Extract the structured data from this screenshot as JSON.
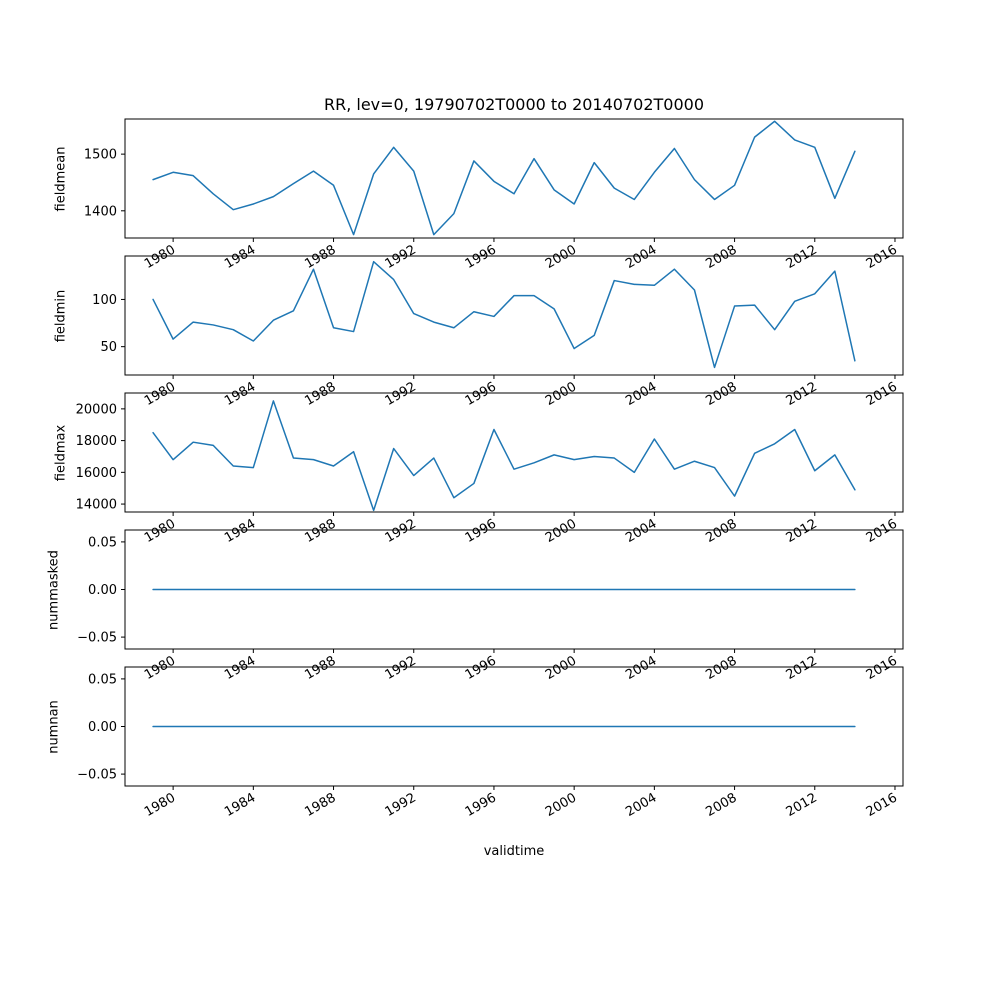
{
  "title": "RR, lev=0, 19790702T0000 to 20140702T0000",
  "xlabel": "validtime",
  "style": {
    "line_color": "#1f77b4",
    "axis_color": "#000000",
    "background": "#ffffff"
  },
  "axes": {
    "xlim": [
      1977.6,
      2016.4
    ],
    "xticks": [
      {
        "value": 1980,
        "label": "1980"
      },
      {
        "value": 1984,
        "label": "1984"
      },
      {
        "value": 1988,
        "label": "1988"
      },
      {
        "value": 1992,
        "label": "1992"
      },
      {
        "value": 1996,
        "label": "1996"
      },
      {
        "value": 2000,
        "label": "2000"
      },
      {
        "value": 2004,
        "label": "2004"
      },
      {
        "value": 2008,
        "label": "2008"
      },
      {
        "value": 2012,
        "label": "2012"
      },
      {
        "value": 2016,
        "label": "2016"
      }
    ],
    "xtick_rotation_deg": 30
  },
  "chart_data": [
    {
      "type": "line",
      "name": "fieldmean",
      "ylabel": "fieldmean",
      "ylim": [
        1352,
        1562
      ],
      "yticks": [
        {
          "value": 1400,
          "label": "1400"
        },
        {
          "value": 1500,
          "label": "1500"
        }
      ],
      "x": [
        1979,
        1980,
        1981,
        1982,
        1983,
        1984,
        1985,
        1986,
        1987,
        1988,
        1989,
        1990,
        1991,
        1992,
        1993,
        1994,
        1995,
        1996,
        1997,
        1998,
        1999,
        2000,
        2001,
        2002,
        2003,
        2004,
        2005,
        2006,
        2007,
        2008,
        2009,
        2010,
        2011,
        2012,
        2013,
        2014
      ],
      "values": [
        1455,
        1468,
        1462,
        1430,
        1402,
        1412,
        1425,
        1448,
        1470,
        1445,
        1358,
        1465,
        1512,
        1470,
        1358,
        1395,
        1488,
        1452,
        1430,
        1492,
        1437,
        1412,
        1485,
        1440,
        1420,
        1468,
        1510,
        1455,
        1420,
        1445,
        1530,
        1558,
        1525,
        1512,
        1422,
        1505
      ]
    },
    {
      "type": "line",
      "name": "fieldmin",
      "ylabel": "fieldmin",
      "ylim": [
        20,
        146
      ],
      "yticks": [
        {
          "value": 50,
          "label": "50"
        },
        {
          "value": 100,
          "label": "100"
        }
      ],
      "x": [
        1979,
        1980,
        1981,
        1982,
        1983,
        1984,
        1985,
        1986,
        1987,
        1988,
        1989,
        1990,
        1991,
        1992,
        1993,
        1994,
        1995,
        1996,
        1997,
        1998,
        1999,
        2000,
        2001,
        2002,
        2003,
        2004,
        2005,
        2006,
        2007,
        2008,
        2009,
        2010,
        2011,
        2012,
        2013,
        2014
      ],
      "values": [
        100,
        58,
        76,
        73,
        68,
        56,
        78,
        88,
        132,
        70,
        66,
        140,
        121,
        85,
        76,
        70,
        87,
        82,
        104,
        104,
        90,
        48,
        62,
        120,
        116,
        115,
        132,
        110,
        28,
        93,
        94,
        68,
        98,
        106,
        130,
        35
      ]
    },
    {
      "type": "line",
      "name": "fieldmax",
      "ylabel": "fieldmax",
      "ylim": [
        13500,
        21000
      ],
      "yticks": [
        {
          "value": 14000,
          "label": "14000"
        },
        {
          "value": 16000,
          "label": "16000"
        },
        {
          "value": 18000,
          "label": "18000"
        },
        {
          "value": 20000,
          "label": "20000"
        }
      ],
      "x": [
        1979,
        1980,
        1981,
        1982,
        1983,
        1984,
        1985,
        1986,
        1987,
        1988,
        1989,
        1990,
        1991,
        1992,
        1993,
        1994,
        1995,
        1996,
        1997,
        1998,
        1999,
        2000,
        2001,
        2002,
        2003,
        2004,
        2005,
        2006,
        2007,
        2008,
        2009,
        2010,
        2011,
        2012,
        2013,
        2014
      ],
      "values": [
        18500,
        16800,
        17900,
        17700,
        16400,
        16300,
        20500,
        16900,
        16800,
        16400,
        17300,
        13600,
        17500,
        15800,
        16900,
        14400,
        15300,
        18700,
        16200,
        16600,
        17100,
        16800,
        17000,
        16900,
        16000,
        18100,
        16200,
        16700,
        16300,
        14500,
        17200,
        17800,
        18700,
        16100,
        17100,
        14900
      ]
    },
    {
      "type": "line",
      "name": "nummasked",
      "ylabel": "nummasked",
      "ylim": [
        -0.0625,
        0.0625
      ],
      "yticks": [
        {
          "value": -0.05,
          "label": "−0.05"
        },
        {
          "value": 0.0,
          "label": "0.00"
        },
        {
          "value": 0.05,
          "label": "0.05"
        }
      ],
      "x": [
        1979,
        1980,
        1981,
        1982,
        1983,
        1984,
        1985,
        1986,
        1987,
        1988,
        1989,
        1990,
        1991,
        1992,
        1993,
        1994,
        1995,
        1996,
        1997,
        1998,
        1999,
        2000,
        2001,
        2002,
        2003,
        2004,
        2005,
        2006,
        2007,
        2008,
        2009,
        2010,
        2011,
        2012,
        2013,
        2014
      ],
      "values": [
        0,
        0,
        0,
        0,
        0,
        0,
        0,
        0,
        0,
        0,
        0,
        0,
        0,
        0,
        0,
        0,
        0,
        0,
        0,
        0,
        0,
        0,
        0,
        0,
        0,
        0,
        0,
        0,
        0,
        0,
        0,
        0,
        0,
        0,
        0,
        0
      ]
    },
    {
      "type": "line",
      "name": "numnan",
      "ylabel": "numnan",
      "ylim": [
        -0.0625,
        0.0625
      ],
      "yticks": [
        {
          "value": -0.05,
          "label": "−0.05"
        },
        {
          "value": 0.0,
          "label": "0.00"
        },
        {
          "value": 0.05,
          "label": "0.05"
        }
      ],
      "x": [
        1979,
        1980,
        1981,
        1982,
        1983,
        1984,
        1985,
        1986,
        1987,
        1988,
        1989,
        1990,
        1991,
        1992,
        1993,
        1994,
        1995,
        1996,
        1997,
        1998,
        1999,
        2000,
        2001,
        2002,
        2003,
        2004,
        2005,
        2006,
        2007,
        2008,
        2009,
        2010,
        2011,
        2012,
        2013,
        2014
      ],
      "values": [
        0,
        0,
        0,
        0,
        0,
        0,
        0,
        0,
        0,
        0,
        0,
        0,
        0,
        0,
        0,
        0,
        0,
        0,
        0,
        0,
        0,
        0,
        0,
        0,
        0,
        0,
        0,
        0,
        0,
        0,
        0,
        0,
        0,
        0,
        0,
        0
      ]
    }
  ]
}
